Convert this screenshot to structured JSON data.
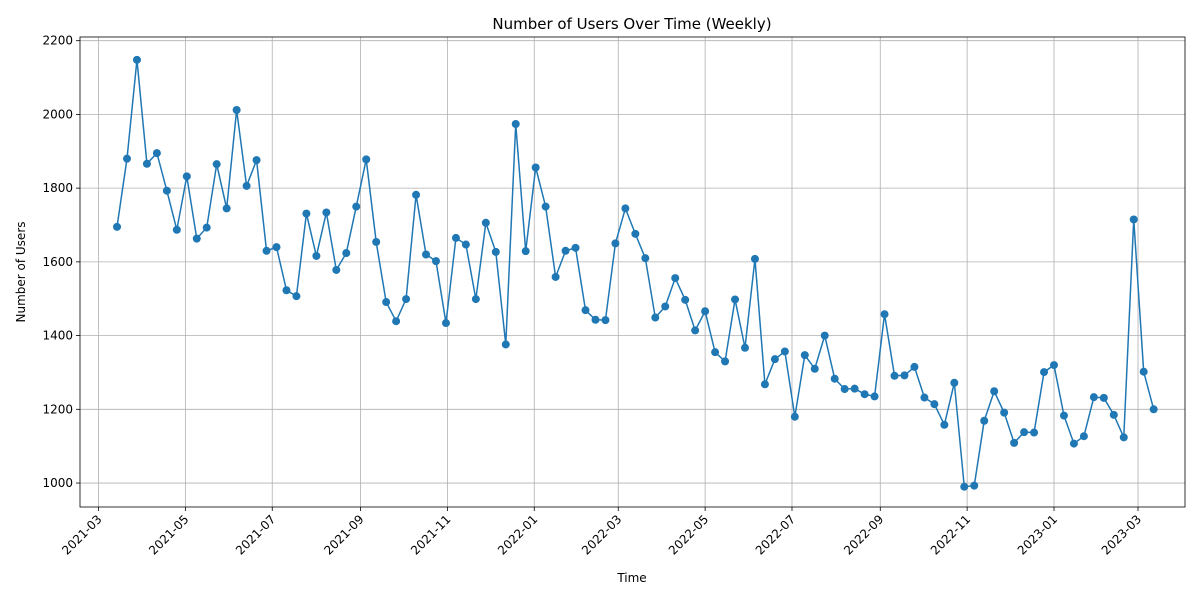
{
  "chart_data": {
    "type": "line",
    "title": "Number of Users Over Time (Weekly)",
    "xlabel": "Time",
    "ylabel": "Number of Users",
    "grid": true,
    "line_color": "#1f77b4",
    "marker": "circle",
    "xlim": [
      "2021-02-16",
      "2023-04-03"
    ],
    "ylim": [
      935,
      2210
    ],
    "x_ticks": [
      "2021-03",
      "2021-05",
      "2021-07",
      "2021-09",
      "2021-11",
      "2022-01",
      "2022-03",
      "2022-05",
      "2022-07",
      "2022-09",
      "2022-11",
      "2023-01",
      "2023-03"
    ],
    "y_ticks": [
      1000,
      1200,
      1400,
      1600,
      1800,
      2000,
      2200
    ],
    "x_start": "2021-03-14",
    "x_step_days": 7,
    "series": [
      {
        "values": [
          1695,
          1880,
          2148,
          1866,
          1895,
          1793,
          1687,
          1832,
          1663,
          1693,
          1865,
          1745,
          2012,
          1806,
          1876,
          1630,
          1640,
          1523,
          1507,
          1731,
          1616,
          1734,
          1578,
          1624,
          1750,
          1878,
          1654,
          1491,
          1439,
          1499,
          1782,
          1620,
          1602,
          1434,
          1665,
          1647,
          1499,
          1706,
          1627,
          1376,
          1974,
          1629,
          1856,
          1750,
          1559,
          1630,
          1638,
          1469,
          1443,
          1442,
          1650,
          1745,
          1676,
          1610,
          1449,
          1479,
          1556,
          1497,
          1414,
          1466,
          1355,
          1330,
          1498,
          1367,
          1608,
          1268,
          1336,
          1357,
          1180,
          1347,
          1310,
          1400,
          1283,
          1255,
          1256,
          1241,
          1235,
          1458,
          1291,
          1292,
          1315,
          1232,
          1214,
          1158,
          1272,
          990,
          993,
          1169,
          1249,
          1191,
          1109,
          1138,
          1137,
          1301,
          1320,
          1183,
          1107,
          1127,
          1233,
          1231,
          1185,
          1124,
          1715,
          1302,
          1200
        ]
      }
    ]
  }
}
